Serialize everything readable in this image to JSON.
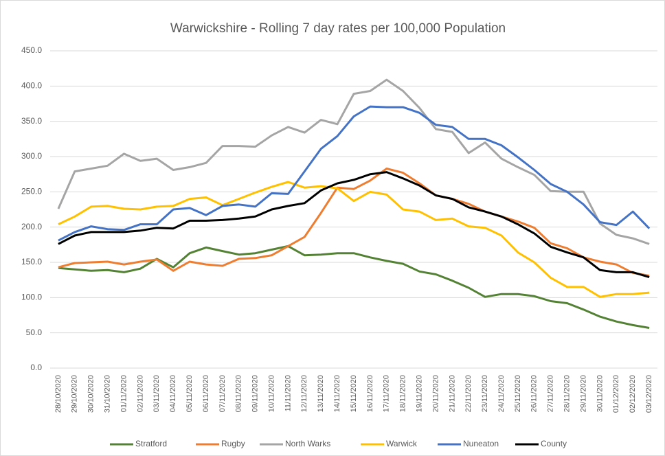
{
  "chart_data": {
    "type": "line",
    "title": "Warwickshire - Rolling 7 day rates per 100,000 Population",
    "categories": [
      "28/10/2020",
      "29/10/2020",
      "30/10/2020",
      "31/10/2020",
      "01/11/2020",
      "02/11/2020",
      "03/11/2020",
      "04/11/2020",
      "05/11/2020",
      "06/11/2020",
      "07/11/2020",
      "08/11/2020",
      "09/11/2020",
      "10/11/2020",
      "11/11/2020",
      "12/11/2020",
      "13/11/2020",
      "14/11/2020",
      "15/11/2020",
      "16/11/2020",
      "17/11/2020",
      "18/11/2020",
      "19/11/2020",
      "20/11/2020",
      "21/11/2020",
      "22/11/2020",
      "23/11/2020",
      "24/11/2020",
      "25/11/2020",
      "26/11/2020",
      "27/11/2020",
      "28/11/2020",
      "29/11/2020",
      "30/11/2020",
      "01/12/2020",
      "02/12/2020",
      "03/12/2020"
    ],
    "series": [
      {
        "name": "Stratford",
        "color": "#548235",
        "values": [
          142,
          140,
          138,
          139,
          136,
          141,
          155,
          143,
          163,
          171,
          166,
          161,
          163,
          168,
          173,
          160,
          161,
          163,
          163,
          157,
          152,
          148,
          137,
          133,
          124,
          114,
          101,
          105,
          105,
          102,
          95,
          92,
          83,
          73,
          66,
          61,
          57
        ]
      },
      {
        "name": "Rugby",
        "color": "#ed7d31",
        "values": [
          143,
          149,
          150,
          151,
          147,
          151,
          154,
          138,
          151,
          147,
          145,
          155,
          156,
          160,
          173,
          186,
          220,
          256,
          254,
          266,
          283,
          277,
          262,
          245,
          240,
          233,
          222,
          215,
          208,
          199,
          177,
          170,
          157,
          151,
          147,
          135,
          131
        ]
      },
      {
        "name": "North Warks",
        "color": "#a5a5a5",
        "values": [
          226,
          279,
          283,
          287,
          304,
          294,
          297,
          281,
          285,
          291,
          315,
          315,
          314,
          330,
          342,
          334,
          352,
          346,
          389,
          393,
          409,
          393,
          369,
          339,
          335,
          305,
          320,
          297,
          285,
          274,
          251,
          250,
          250,
          205,
          189,
          184,
          176
        ]
      },
      {
        "name": "Warwick",
        "color": "#ffc000",
        "values": [
          204,
          215,
          229,
          230,
          226,
          225,
          229,
          230,
          240,
          242,
          231,
          240,
          249,
          257,
          264,
          256,
          258,
          255,
          237,
          250,
          246,
          225,
          222,
          210,
          212,
          201,
          199,
          188,
          164,
          150,
          128,
          115,
          115,
          101,
          105,
          105,
          107
        ]
      },
      {
        "name": "Nuneaton",
        "color": "#4472c4",
        "values": [
          181,
          193,
          201,
          197,
          196,
          204,
          204,
          225,
          227,
          217,
          230,
          232,
          229,
          248,
          247,
          279,
          311,
          329,
          357,
          371,
          370,
          370,
          362,
          345,
          342,
          325,
          325,
          316,
          299,
          281,
          261,
          250,
          232,
          207,
          203,
          222,
          198
        ]
      },
      {
        "name": "County",
        "color": "#000000",
        "values": [
          176,
          188,
          193,
          193,
          193,
          195,
          199,
          198,
          209,
          209,
          210,
          212,
          215,
          225,
          230,
          234,
          252,
          262,
          267,
          275,
          278,
          269,
          259,
          245,
          240,
          228,
          222,
          215,
          204,
          191,
          172,
          164,
          157,
          139,
          136,
          136,
          129
        ]
      }
    ],
    "ylim": [
      0,
      450
    ],
    "yticks": [
      {
        "value": 0,
        "label": "0.0"
      },
      {
        "value": 50,
        "label": "50.0"
      },
      {
        "value": 100,
        "label": "100.0"
      },
      {
        "value": 150,
        "label": "150.0"
      },
      {
        "value": 200,
        "label": "200.0"
      },
      {
        "value": 250,
        "label": "250.0"
      },
      {
        "value": 300,
        "label": "300.0"
      },
      {
        "value": 350,
        "label": "350.0"
      },
      {
        "value": 400,
        "label": "400.0"
      },
      {
        "value": 450,
        "label": "450.0"
      }
    ],
    "grid": true,
    "legend": "bottom"
  }
}
